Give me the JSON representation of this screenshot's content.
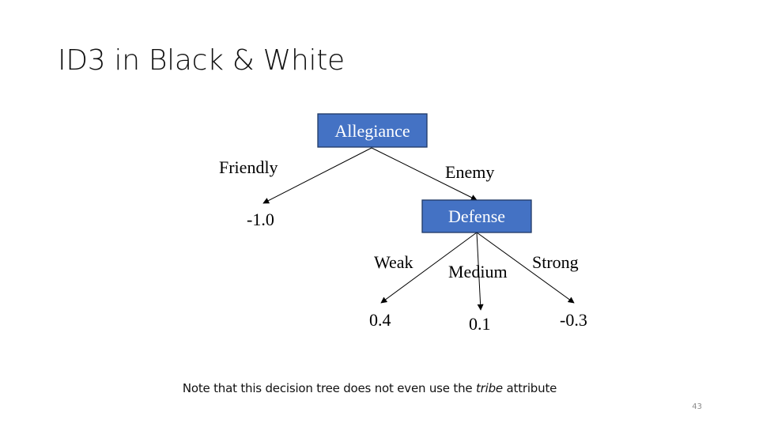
{
  "slide": {
    "title": "ID3 in Black & White",
    "note_prefix": "Note that this decision tree does not even use the ",
    "note_emphasis": "tribe",
    "note_suffix": " attribute",
    "page_number": "43"
  },
  "tree": {
    "root": {
      "label": "Allegiance"
    },
    "friendly_edge": {
      "label": "Friendly"
    },
    "enemy_edge": {
      "label": "Enemy"
    },
    "friendly_leaf": {
      "label": "-1.0"
    },
    "defense_node": {
      "label": "Defense"
    },
    "weak_edge": {
      "label": "Weak"
    },
    "medium_edge": {
      "label": "Medium"
    },
    "strong_edge": {
      "label": "Strong"
    },
    "weak_leaf": {
      "label": "0.4"
    },
    "medium_leaf": {
      "label": "0.1"
    },
    "strong_leaf": {
      "label": "-0.3"
    }
  },
  "colors": {
    "node_fill": "#4472c4",
    "node_border": "#1f3864",
    "node_text": "#ffffff",
    "edge": "#000000"
  }
}
